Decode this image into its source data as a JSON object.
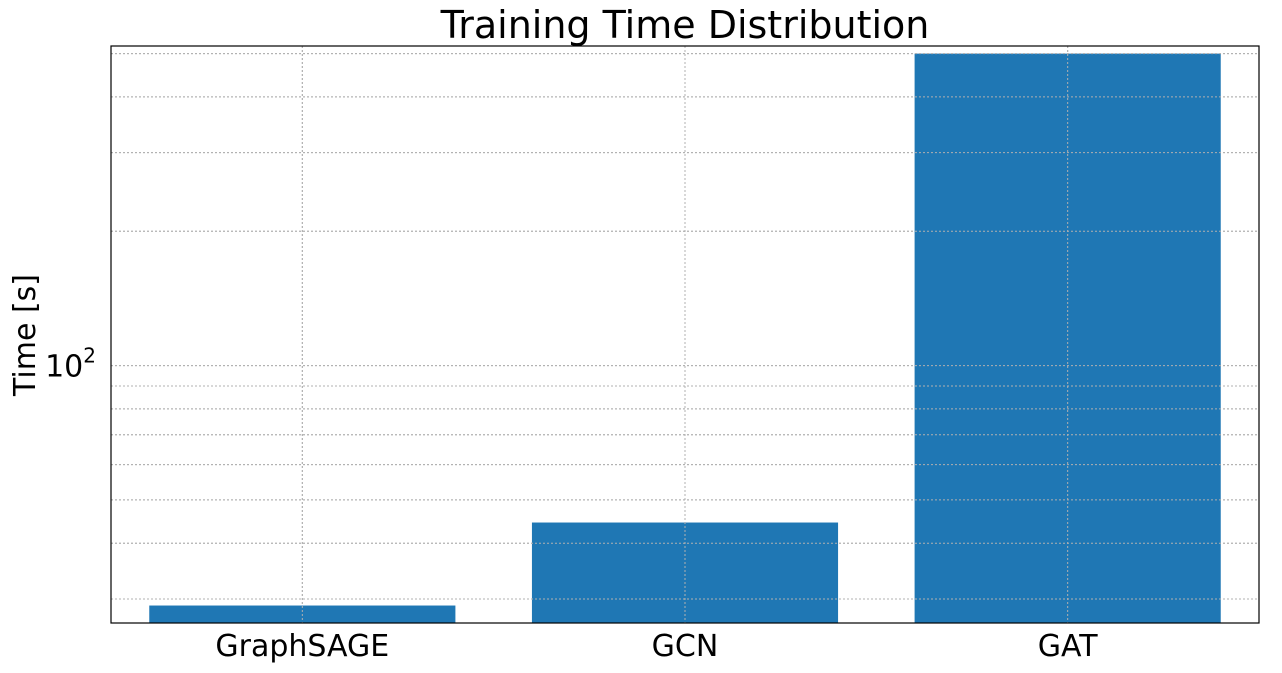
{
  "chart_data": {
    "type": "bar",
    "title": "Training Time Distribution",
    "xlabel": "",
    "ylabel": "Time [s]",
    "yscale": "log",
    "ylim": [
      26.5,
      520
    ],
    "categories": [
      "GraphSAGE",
      "GCN",
      "GAT"
    ],
    "values": [
      29,
      44.5,
      500
    ],
    "bar_color": "#1f77b4",
    "grid": true,
    "y_major_ticks": [
      {
        "value": 100,
        "base": "10",
        "exponent": "2"
      }
    ],
    "y_minor_ticks": [
      30,
      40,
      50,
      60,
      70,
      80,
      90,
      200,
      300,
      400,
      500
    ]
  }
}
